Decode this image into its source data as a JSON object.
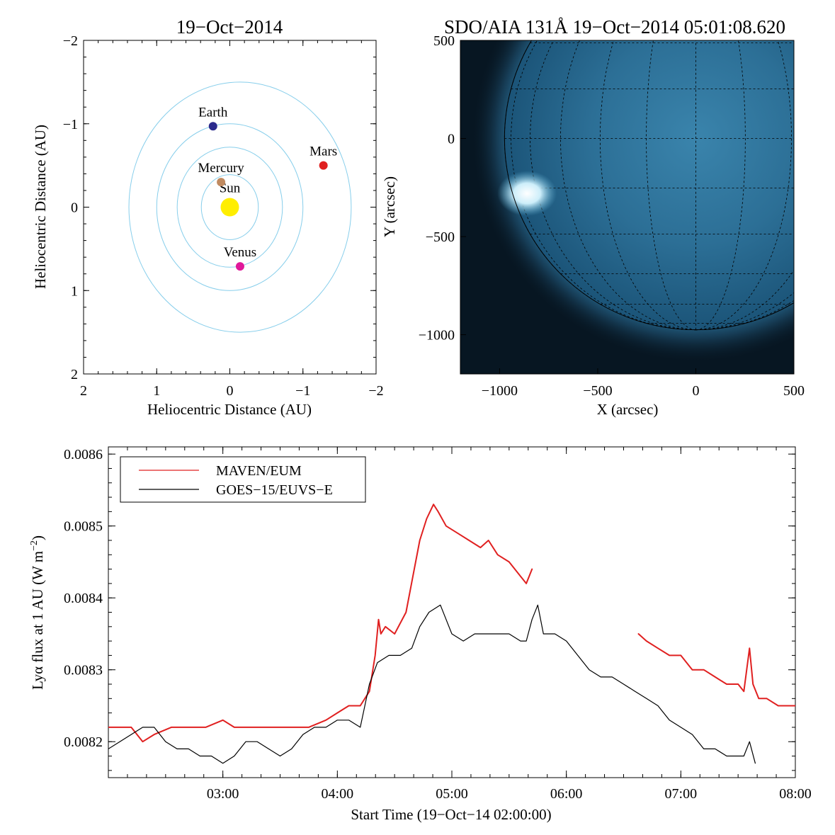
{
  "chart_data": [
    {
      "type": "scatter",
      "title": "19−Oct−2014",
      "xlabel": "Heliocentric Distance (AU)",
      "ylabel": "Heliocentric Distance (AU)",
      "xlim": [
        2,
        -2
      ],
      "ylim": [
        -2,
        2
      ],
      "x_ticks": [
        2,
        1,
        0,
        -1,
        -2
      ],
      "x_tick_labels": [
        "2",
        "1",
        "0",
        "−1",
        "−2"
      ],
      "y_ticks": [
        -2,
        -1,
        0,
        1,
        2
      ],
      "y_tick_labels": [
        "−2",
        "−1",
        "0",
        "1",
        "2"
      ],
      "orbits": [
        {
          "name": "Mercury",
          "a": 0.39
        },
        {
          "name": "Venus",
          "a": 0.72
        },
        {
          "name": "Earth",
          "a": 1.0
        },
        {
          "name": "Mars",
          "a": 1.52,
          "center_x": -0.14,
          "b": 1.5
        }
      ],
      "orbit_color": "#87ceeb",
      "planets": [
        {
          "name": "Sun",
          "x": 0.0,
          "y": 0.0,
          "color": "#ffee00",
          "size": 13
        },
        {
          "name": "Mercury",
          "x": 0.12,
          "y": -0.3,
          "color": "#c08a60",
          "size": 6
        },
        {
          "name": "Venus",
          "x": -0.14,
          "y": 0.71,
          "color": "#e0189a",
          "size": 6
        },
        {
          "name": "Earth",
          "x": 0.23,
          "y": -0.97,
          "color": "#2a2a8c",
          "size": 6
        },
        {
          "name": "Mars",
          "x": -1.28,
          "y": -0.5,
          "color": "#e02020",
          "size": 6
        }
      ]
    },
    {
      "type": "heatmap",
      "title": "SDO/AIA 131Å 19−Oct−2014 05:01:08.620",
      "xlabel": "X (arcsec)",
      "ylabel": "Y (arcsec)",
      "xlim": [
        -1200,
        500
      ],
      "ylim": [
        -1200,
        500
      ],
      "x_ticks": [
        -1000,
        -500,
        0,
        500
      ],
      "x_tick_labels": [
        "−1000",
        "−500",
        "0",
        "500"
      ],
      "y_ticks": [
        500,
        0,
        -500,
        -1000
      ],
      "y_tick_labels": [
        "500",
        "0",
        "−500",
        "−1000"
      ],
      "solar_radius_arcsec": 975,
      "grid_spacing_deg": 15,
      "colormap": [
        "#020a12",
        "#0d3a58",
        "#2f7ea8",
        "#e8fbff"
      ],
      "features": [
        {
          "name": "flare",
          "x": -860,
          "y": -280,
          "intensity": 1.0
        }
      ]
    },
    {
      "type": "line",
      "xlabel": "Start Time (19−Oct−14 02:00:00)",
      "ylabel": "Lyα flux at 1 AU (W m⁻²)",
      "ylabel_base": "Lyα flux at 1 AU (W m",
      "ylabel_sup": "−2",
      "ylabel_end": ")",
      "xlim": [
        2.0,
        8.0
      ],
      "ylim": [
        0.00815,
        0.00861
      ],
      "x_ticks": [
        3,
        4,
        5,
        6,
        7,
        8
      ],
      "x_tick_labels": [
        "03:00",
        "04:00",
        "05:00",
        "06:00",
        "07:00",
        "08:00"
      ],
      "y_ticks": [
        0.0082,
        0.0083,
        0.0084,
        0.0085,
        0.0086
      ],
      "y_tick_labels": [
        "0.0082",
        "0.0083",
        "0.0084",
        "0.0085",
        "0.0086"
      ],
      "legend_position": "top-left",
      "series": [
        {
          "name": "MAVEN/EUM",
          "color": "#e02020",
          "segments": [
            {
              "x": [
                2.0,
                2.2,
                2.3,
                2.4,
                2.55,
                2.7,
                2.85,
                3.0,
                3.1,
                3.25,
                3.4,
                3.5,
                3.6,
                3.75,
                3.9,
                4.0,
                4.1,
                4.2,
                4.28,
                4.33,
                4.36,
                4.38,
                4.42,
                4.5,
                4.6,
                4.66,
                4.72,
                4.78,
                4.84,
                4.88,
                4.95,
                5.05,
                5.15,
                5.25,
                5.32,
                5.4,
                5.5,
                5.6,
                5.65,
                5.7
              ],
              "y": [
                0.00822,
                0.00822,
                0.0082,
                0.00821,
                0.00822,
                0.00822,
                0.00822,
                0.00823,
                0.00822,
                0.00822,
                0.00822,
                0.00822,
                0.00822,
                0.00822,
                0.00823,
                0.00824,
                0.00825,
                0.00825,
                0.00827,
                0.00832,
                0.00837,
                0.00835,
                0.00836,
                0.00835,
                0.00838,
                0.00843,
                0.00848,
                0.00851,
                0.00853,
                0.00852,
                0.0085,
                0.00849,
                0.00848,
                0.00847,
                0.00848,
                0.00846,
                0.00845,
                0.00843,
                0.00842,
                0.00844
              ]
            },
            {
              "x": [
                6.63,
                6.7,
                6.8,
                6.9,
                7.0,
                7.1,
                7.2,
                7.3,
                7.4,
                7.5,
                7.55,
                7.6,
                7.63,
                7.68,
                7.75,
                7.85,
                8.0
              ],
              "y": [
                0.00835,
                0.00834,
                0.00833,
                0.00832,
                0.00832,
                0.0083,
                0.0083,
                0.00829,
                0.00828,
                0.00828,
                0.00827,
                0.00833,
                0.00828,
                0.00826,
                0.00826,
                0.00825,
                0.00825
              ]
            }
          ]
        },
        {
          "name": "GOES−15/EUVS−E",
          "color": "#000000",
          "segments": [
            {
              "x": [
                2.0,
                2.1,
                2.2,
                2.3,
                2.4,
                2.5,
                2.6,
                2.7,
                2.8,
                2.9,
                3.0,
                3.1,
                3.2,
                3.3,
                3.4,
                3.5,
                3.6,
                3.7,
                3.8,
                3.9,
                4.0,
                4.1,
                4.2,
                4.28,
                4.35,
                4.45,
                4.55,
                4.65,
                4.72,
                4.8,
                4.9,
                5.0,
                5.1,
                5.2,
                5.3,
                5.4,
                5.5,
                5.6,
                5.65,
                5.7,
                5.75,
                5.8,
                5.9,
                6.0,
                6.1,
                6.2,
                6.3,
                6.4,
                6.5,
                6.6,
                6.7,
                6.8,
                6.9,
                7.0,
                7.1,
                7.2,
                7.3,
                7.4,
                7.5,
                7.55,
                7.6,
                7.65
              ],
              "y": [
                0.00819,
                0.0082,
                0.00821,
                0.00822,
                0.00822,
                0.0082,
                0.00819,
                0.00819,
                0.00818,
                0.00818,
                0.00817,
                0.00818,
                0.0082,
                0.0082,
                0.00819,
                0.00818,
                0.00819,
                0.00821,
                0.00822,
                0.00822,
                0.00823,
                0.00823,
                0.00822,
                0.00828,
                0.00831,
                0.00832,
                0.00832,
                0.00833,
                0.00836,
                0.00838,
                0.00839,
                0.00835,
                0.00834,
                0.00835,
                0.00835,
                0.00835,
                0.00835,
                0.00834,
                0.00834,
                0.00837,
                0.00839,
                0.00835,
                0.00835,
                0.00834,
                0.00832,
                0.0083,
                0.00829,
                0.00829,
                0.00828,
                0.00827,
                0.00826,
                0.00825,
                0.00823,
                0.00822,
                0.00821,
                0.00819,
                0.00819,
                0.00818,
                0.00818,
                0.00818,
                0.0082,
                0.00817
              ]
            }
          ]
        }
      ]
    }
  ]
}
